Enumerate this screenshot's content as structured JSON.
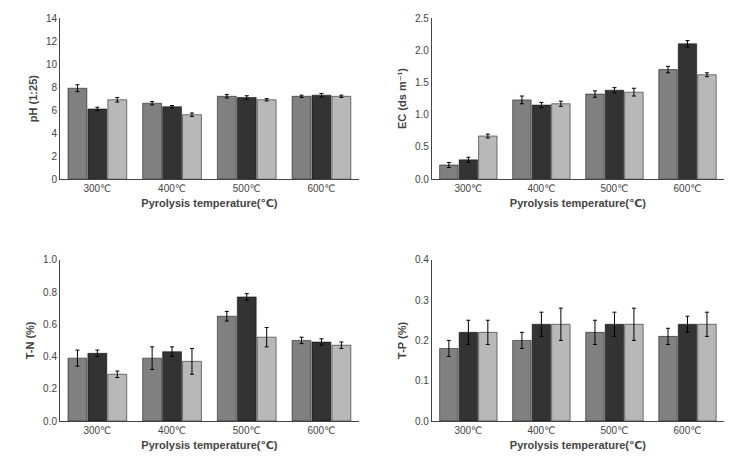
{
  "chart_data": [
    {
      "type": "bar",
      "categories": [
        "300℃",
        "400℃",
        "500℃",
        "600℃"
      ],
      "xlabel": "Pyrolysis temperature(℃)",
      "ylabel": "pH (1:25)",
      "ylim": [
        0,
        14
      ],
      "yticks": [
        0,
        2,
        4,
        6,
        8,
        10,
        12,
        14
      ],
      "grid": false,
      "series": [
        {
          "color": "#808080",
          "values": [
            7.9,
            6.6,
            7.2,
            7.2
          ],
          "errors": [
            0.3,
            0.15,
            0.15,
            0.1
          ]
        },
        {
          "color": "#333333",
          "values": [
            6.1,
            6.3,
            7.1,
            7.3
          ],
          "errors": [
            0.15,
            0.1,
            0.15,
            0.15
          ]
        },
        {
          "color": "#b8b8b8",
          "values": [
            6.9,
            5.6,
            6.9,
            7.2
          ],
          "errors": [
            0.2,
            0.15,
            0.1,
            0.1
          ]
        }
      ]
    },
    {
      "type": "bar",
      "categories": [
        "300℃",
        "400℃",
        "500℃",
        "600℃"
      ],
      "xlabel": "Pyrolysis temperature(℃)",
      "ylabel": "EC (ds m⁻¹)",
      "ylim": [
        0,
        2.5
      ],
      "yticks": [
        {
          "value": 0,
          "label": "0.0"
        },
        0.5,
        {
          "value": 1,
          "label": "1.0"
        },
        1.5,
        {
          "value": 2,
          "label": "2.0"
        },
        2.5
      ],
      "grid": false,
      "series": [
        {
          "color": "#808080",
          "values": [
            0.22,
            1.23,
            1.32,
            1.7
          ],
          "errors": [
            0.04,
            0.06,
            0.05,
            0.05
          ]
        },
        {
          "color": "#333333",
          "values": [
            0.3,
            1.15,
            1.38,
            2.1
          ],
          "errors": [
            0.04,
            0.04,
            0.04,
            0.05
          ]
        },
        {
          "color": "#b8b8b8",
          "values": [
            0.67,
            1.17,
            1.35,
            1.62
          ],
          "errors": [
            0.03,
            0.04,
            0.06,
            0.03
          ]
        }
      ]
    },
    {
      "type": "bar",
      "categories": [
        "300℃",
        "400℃",
        "500℃",
        "600℃"
      ],
      "xlabel": "Pyrolysis temperature(℃)",
      "ylabel": "T-N (%)",
      "ylim": [
        0,
        1.0
      ],
      "yticks": [
        {
          "value": 0,
          "label": "0.0"
        },
        0.2,
        0.4,
        0.6,
        0.8,
        {
          "value": 1,
          "label": "1.0"
        }
      ],
      "grid": false,
      "series": [
        {
          "color": "#808080",
          "values": [
            0.39,
            0.39,
            0.65,
            0.5
          ],
          "errors": [
            0.05,
            0.07,
            0.03,
            0.02
          ]
        },
        {
          "color": "#333333",
          "values": [
            0.42,
            0.43,
            0.77,
            0.49
          ],
          "errors": [
            0.02,
            0.03,
            0.02,
            0.02
          ]
        },
        {
          "color": "#b8b8b8",
          "values": [
            0.29,
            0.37,
            0.52,
            0.47
          ],
          "errors": [
            0.02,
            0.08,
            0.06,
            0.02
          ]
        }
      ]
    },
    {
      "type": "bar",
      "categories": [
        "300℃",
        "400℃",
        "500℃",
        "600℃"
      ],
      "xlabel": "Pyrolysis temperature(℃)",
      "ylabel": "T-P (%)",
      "ylim": [
        0,
        0.4
      ],
      "yticks": [
        {
          "value": 0,
          "label": "0.0"
        },
        0.1,
        0.2,
        0.3,
        0.4
      ],
      "grid": false,
      "series": [
        {
          "color": "#808080",
          "values": [
            0.18,
            0.2,
            0.22,
            0.21
          ],
          "errors": [
            0.02,
            0.02,
            0.03,
            0.02
          ]
        },
        {
          "color": "#333333",
          "values": [
            0.22,
            0.24,
            0.24,
            0.24
          ],
          "errors": [
            0.03,
            0.03,
            0.03,
            0.02
          ]
        },
        {
          "color": "#b8b8b8",
          "values": [
            0.22,
            0.24,
            0.24,
            0.24
          ],
          "errors": [
            0.03,
            0.04,
            0.04,
            0.03
          ]
        }
      ]
    }
  ]
}
